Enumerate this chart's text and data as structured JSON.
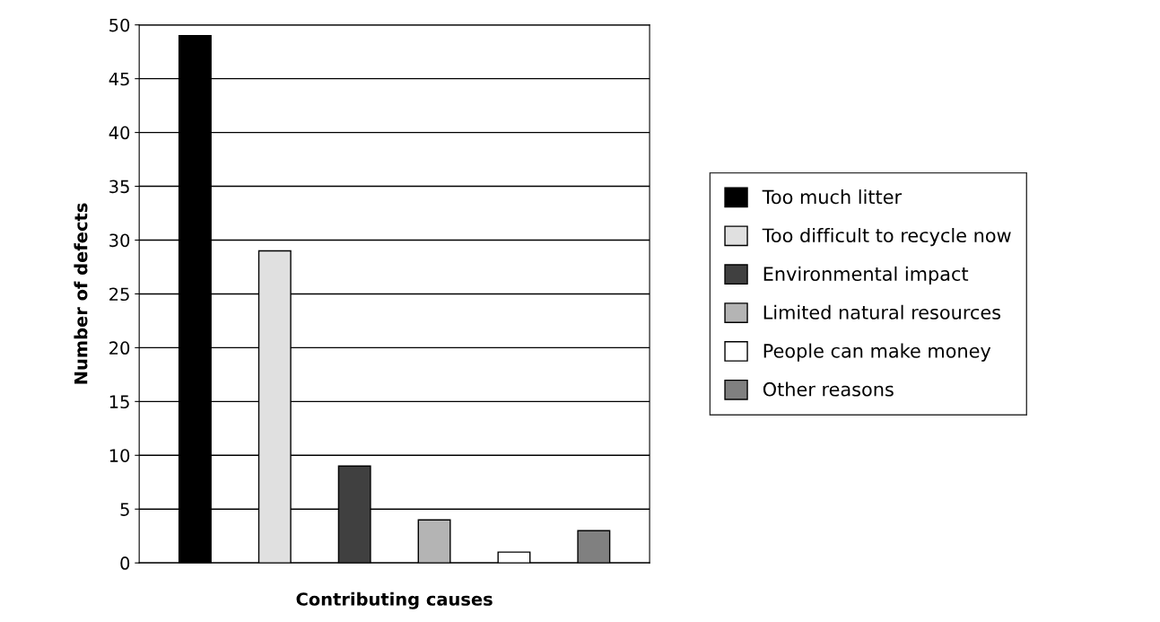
{
  "chart_data": {
    "type": "bar",
    "xlabel": "Contributing causes",
    "ylabel": "Number of defects",
    "categories": [
      null,
      null,
      null,
      null,
      null,
      null
    ],
    "series": [
      {
        "name": "Too much litter",
        "color": "#000000",
        "values": [
          49,
          null,
          null,
          null,
          null,
          null
        ]
      },
      {
        "name": "Too difficult to recycle now",
        "color": "#e0e0e0",
        "values": [
          null,
          29,
          null,
          null,
          null,
          null
        ]
      },
      {
        "name": "Environmental impact",
        "color": "#404040",
        "values": [
          null,
          null,
          9,
          null,
          null,
          null
        ]
      },
      {
        "name": "Limited natural resources",
        "color": "#b4b4b4",
        "values": [
          null,
          null,
          null,
          4,
          null,
          null
        ]
      },
      {
        "name": "People can make money",
        "color": "#ffffff",
        "values": [
          null,
          null,
          null,
          null,
          1,
          null
        ]
      },
      {
        "name": "Other reasons",
        "color": "#808080",
        "values": [
          null,
          null,
          null,
          null,
          null,
          3
        ]
      }
    ],
    "ylim": [
      0,
      50
    ],
    "yticks": [
      0,
      5,
      10,
      15,
      20,
      25,
      30,
      35,
      40,
      45,
      50
    ],
    "grid": "y",
    "legend": "right"
  }
}
